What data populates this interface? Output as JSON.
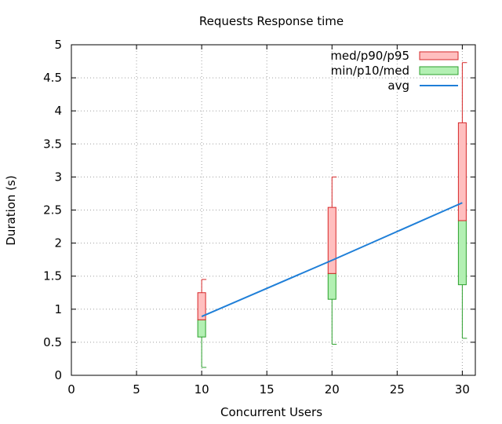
{
  "chart_data": {
    "type": "boxplot-line",
    "title": "Requests Response time",
    "xlabel": "Concurrent Users",
    "ylabel": "Duration (s)",
    "xlim": [
      0,
      31
    ],
    "ylim": [
      0,
      5
    ],
    "xticks": [
      0,
      5,
      10,
      15,
      20,
      25,
      30
    ],
    "yticks": [
      "0",
      "0.5",
      "1",
      "1.5",
      "2",
      "2.5",
      "3",
      "3.5",
      "4",
      "4.5",
      "5"
    ],
    "grid": true,
    "legend_position": "top-right",
    "legend": [
      {
        "label": "med/p90/p95",
        "kind": "upper-box",
        "color": "#ffbfbf",
        "stroke": "#d62728"
      },
      {
        "label": "min/p10/med",
        "kind": "lower-box",
        "color": "#b3f0b3",
        "stroke": "#2ca02c"
      },
      {
        "label": "avg",
        "kind": "line",
        "color": "#1f7fd8"
      }
    ],
    "boxes": [
      {
        "x": 10,
        "min": 0.12,
        "p10": 0.58,
        "med": 0.84,
        "p90": 1.25,
        "p95": 1.45
      },
      {
        "x": 20,
        "min": 0.47,
        "p10": 1.15,
        "med": 1.54,
        "p90": 2.54,
        "p95": 3.0
      },
      {
        "x": 30,
        "min": 0.56,
        "p10": 1.37,
        "med": 2.34,
        "p90": 3.82,
        "p95": 4.73
      }
    ],
    "avg": {
      "x": [
        10,
        20,
        30
      ],
      "y": [
        0.89,
        1.74,
        2.61
      ]
    }
  }
}
